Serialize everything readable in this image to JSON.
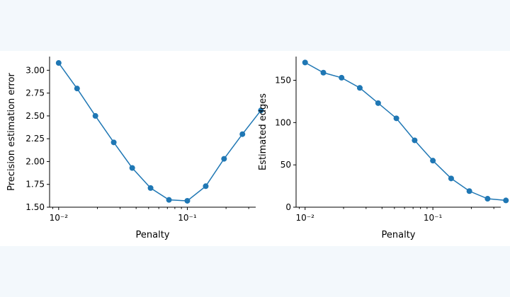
{
  "chart_data": [
    {
      "type": "line",
      "xscale": "log",
      "xlim": [
        0.0085,
        0.34
      ],
      "ylim": [
        1.5,
        3.15
      ],
      "x": [
        0.01,
        0.0139,
        0.0193,
        0.0268,
        0.0373,
        0.0518,
        0.072,
        0.1,
        0.139,
        0.193,
        0.268,
        0.373
      ],
      "series": [
        {
          "values": [
            3.08,
            2.8,
            2.5,
            2.21,
            1.93,
            1.71,
            1.58,
            1.57,
            1.73,
            2.03,
            2.3,
            2.56
          ]
        }
      ],
      "xticks": [
        0.01,
        0.1
      ],
      "xticklabels": [
        "10⁻²",
        "10⁻¹"
      ],
      "yticks": [
        1.5,
        1.75,
        2.0,
        2.25,
        2.5,
        2.75,
        3.0
      ],
      "yticklabels": [
        "1.50",
        "1.75",
        "2.00",
        "2.25",
        "2.50",
        "2.75",
        "3.00"
      ],
      "xlabel": "Penalty",
      "ylabel": "Precision estimation error",
      "grid": false,
      "color": "#1f77b4"
    },
    {
      "type": "line",
      "xscale": "log",
      "xlim": [
        0.0085,
        0.34
      ],
      "ylim": [
        0,
        178
      ],
      "x": [
        0.01,
        0.0139,
        0.0193,
        0.0268,
        0.0373,
        0.0518,
        0.072,
        0.1,
        0.139,
        0.193,
        0.268,
        0.373
      ],
      "series": [
        {
          "values": [
            171,
            159,
            153,
            141,
            123,
            105,
            79,
            55,
            34,
            19,
            10,
            8
          ]
        }
      ],
      "xticks": [
        0.01,
        0.1
      ],
      "xticklabels": [
        "10⁻²",
        "10⁻¹"
      ],
      "yticks": [
        0,
        50,
        100,
        150
      ],
      "yticklabels": [
        "0",
        "50",
        "100",
        "150"
      ],
      "xlabel": "Penalty",
      "ylabel": "Estimated edges",
      "grid": false,
      "color": "#1f77b4"
    }
  ]
}
